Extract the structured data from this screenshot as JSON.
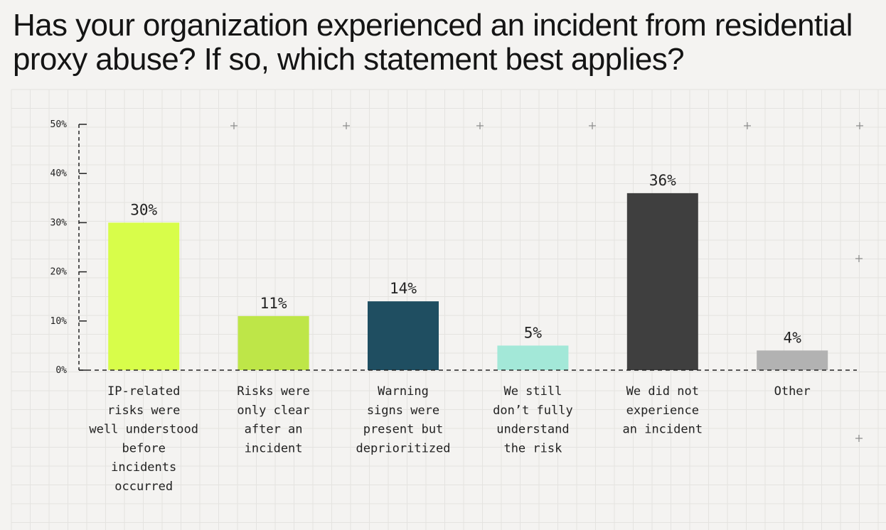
{
  "title": "Has your organization experienced an incident from residential proxy abuse? If so, which statement best applies?",
  "chart_data": {
    "type": "bar",
    "ylim": [
      0,
      50
    ],
    "yticks": [
      0,
      10,
      20,
      30,
      40,
      50
    ],
    "ytick_labels": [
      "0%",
      "10%",
      "20%",
      "30%",
      "40%",
      "50%"
    ],
    "categories": [
      "IP-related risks were well understood before incidents occurred",
      "Risks were only clear after an incident",
      "Warning signs were present but deprioritized",
      "We still don’t fully understand the risk",
      "We did not experience an incident",
      "Other"
    ],
    "category_lines": [
      [
        "IP-related",
        "risks were",
        "well understood",
        "before",
        "incidents",
        "occurred"
      ],
      [
        "Risks were",
        "only clear",
        "after an",
        "incident"
      ],
      [
        "Warning",
        "signs were",
        "present but",
        "deprioritized"
      ],
      [
        "We still",
        "don’t fully",
        "understand",
        "the risk"
      ],
      [
        "We did not",
        "experience",
        "an incident"
      ],
      [
        "Other"
      ]
    ],
    "values": [
      30,
      11,
      14,
      5,
      36,
      4
    ],
    "value_labels": [
      "30%",
      "11%",
      "14%",
      "5%",
      "36%",
      "4%"
    ],
    "colors": [
      "#d8fd4a",
      "#bee648",
      "#1f4e61",
      "#a3e8d8",
      "#3f3f3f",
      "#b2b2b2"
    ],
    "grid": true,
    "xlabel": "",
    "ylabel": ""
  }
}
